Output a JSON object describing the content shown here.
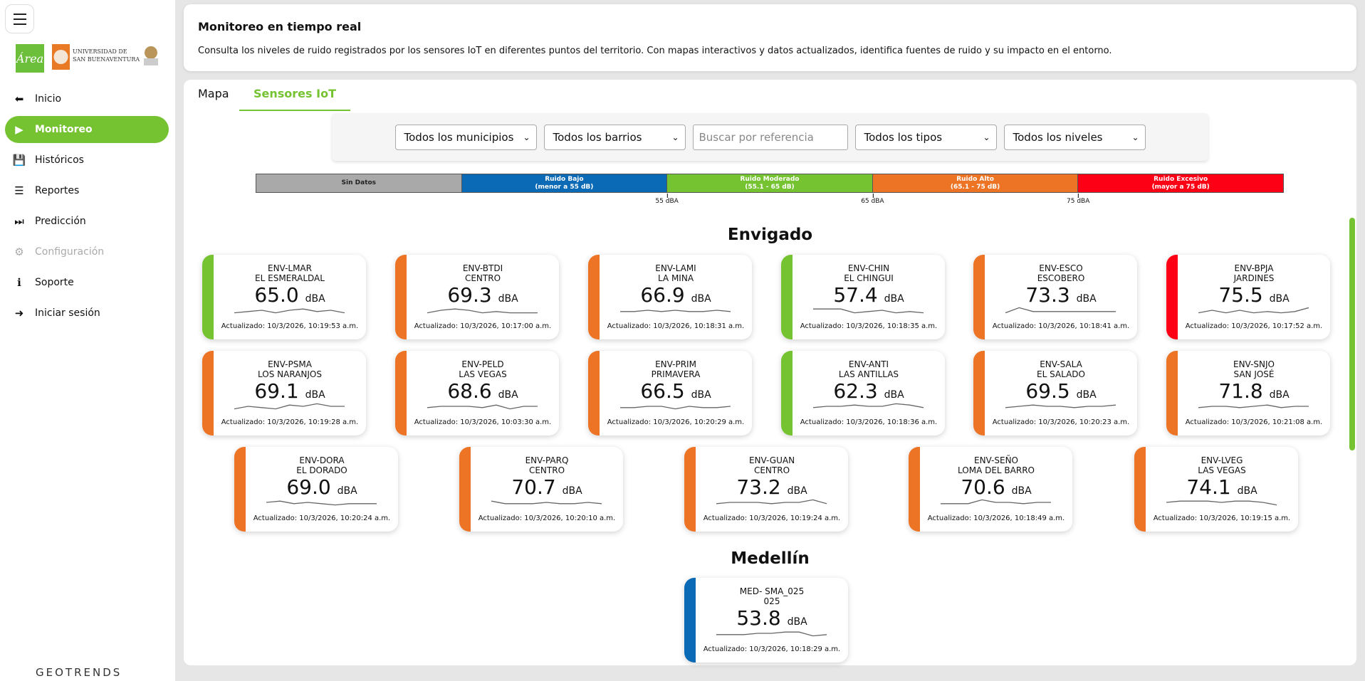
{
  "sidebar": {
    "brand": "GEOTRENDS",
    "logos": [
      "Área Metropolitana",
      "Universidad de San Buenaventura",
      "Escudo"
    ],
    "items": [
      {
        "label": "Inicio",
        "icon": "arrow-left-circle-icon"
      },
      {
        "label": "Monitoreo",
        "icon": "play-circle-icon",
        "active": true
      },
      {
        "label": "Históricos",
        "icon": "save-icon"
      },
      {
        "label": "Reportes",
        "icon": "list-chart-icon"
      },
      {
        "label": "Predicción",
        "icon": "skip-forward-icon"
      },
      {
        "label": "Configuración",
        "icon": "gear-icon",
        "disabled": true
      },
      {
        "label": "Soporte",
        "icon": "info-icon"
      },
      {
        "label": "Iniciar sesión",
        "icon": "login-icon"
      }
    ]
  },
  "header": {
    "title": "Monitoreo en tiempo real",
    "description": "Consulta los niveles de ruido registrados por los sensores IoT en diferentes puntos del territorio. Con mapas interactivos y datos actualizados, identifica fuentes de ruido y su impacto en el entorno."
  },
  "tabs": [
    {
      "label": "Mapa"
    },
    {
      "label": "Sensores IoT",
      "active": true
    }
  ],
  "filters": {
    "municipio": "Todos los municipios",
    "barrio": "Todos los barrios",
    "search_placeholder": "Buscar por referencia",
    "tipo": "Todos los tipos",
    "nivel": "Todos los niveles"
  },
  "legend": {
    "segments": [
      {
        "title": "Sin Datos",
        "range": "",
        "color": "#a9a9a9"
      },
      {
        "title": "Ruido Bajo",
        "range": "(menor a 55 dB)",
        "color": "#0a6ab5"
      },
      {
        "title": "Ruido Moderado",
        "range": "(55.1 - 65 dB)",
        "color": "#76c332"
      },
      {
        "title": "Ruido Alto",
        "range": "(65.1 - 75 dB)",
        "color": "#ec7424"
      },
      {
        "title": "Ruido Excesivo",
        "range": "(mayor a 75 dB)",
        "color": "#fe0016"
      }
    ],
    "ticks": [
      "55 dBA",
      "65 dBA",
      "75 dBA"
    ]
  },
  "unit": "dBA",
  "regions": [
    {
      "name": "Envigado",
      "sensors": [
        {
          "code": "ENV-LMAR",
          "place": "EL ESMERALDAL",
          "value": "65.0",
          "updated": "Actualizado: 10/3/2026, 10:19:53 a.m.",
          "color": "#76c332",
          "trend": [
            3,
            4,
            5,
            3,
            5,
            6,
            4,
            5,
            3
          ]
        },
        {
          "code": "ENV-BTDI",
          "place": "CENTRO",
          "value": "69.3",
          "updated": "Actualizado: 10/3/2026, 10:17:00 a.m.",
          "color": "#ec7424",
          "trend": [
            3,
            5,
            6,
            5,
            3,
            4,
            3,
            3,
            3
          ]
        },
        {
          "code": "ENV-LAMI",
          "place": "LA MINA",
          "value": "66.9",
          "updated": "Actualizado: 10/3/2026, 10:18:31 a.m.",
          "color": "#ec7424",
          "trend": [
            4,
            4,
            5,
            4,
            5,
            4,
            4,
            5,
            4
          ]
        },
        {
          "code": "ENV-CHIN",
          "place": "EL CHINGUI",
          "value": "57.4",
          "updated": "Actualizado: 10/3/2026, 10:18:35 a.m.",
          "color": "#76c332",
          "trend": [
            6,
            6,
            6,
            3,
            4,
            5,
            3,
            4,
            3
          ]
        },
        {
          "code": "ENV-ESCO",
          "place": "ESCOBERO",
          "value": "73.3",
          "updated": "Actualizado: 10/3/2026, 10:18:41 a.m.",
          "color": "#ec7424",
          "trend": [
            3,
            7,
            4,
            4,
            4,
            4,
            4,
            4,
            4
          ]
        },
        {
          "code": "ENV-BPJA",
          "place": "JARDINES",
          "value": "75.5",
          "updated": "Actualizado: 10/3/2026, 10:17:52 a.m.",
          "color": "#fe0016",
          "trend": [
            3,
            5,
            3,
            5,
            3,
            4,
            3,
            4,
            7
          ]
        },
        {
          "code": "ENV-PSMA",
          "place": "LOS NARANJOS",
          "value": "69.1",
          "updated": "Actualizado: 10/3/2026, 10:19:28 a.m.",
          "color": "#ec7424",
          "trend": [
            3,
            5,
            4,
            3,
            6,
            5,
            7,
            5,
            5
          ]
        },
        {
          "code": "ENV-PELD",
          "place": "LAS VEGAS",
          "value": "68.6",
          "updated": "Actualizado: 10/3/2026, 10:03:30 a.m.",
          "color": "#ec7424",
          "trend": [
            4,
            5,
            5,
            5,
            4,
            6,
            3,
            5,
            5
          ]
        },
        {
          "code": "ENV-PRIM",
          "place": "PRIMAVERA",
          "value": "66.5",
          "updated": "Actualizado: 10/3/2026, 10:20:29 a.m.",
          "color": "#ec7424",
          "trend": [
            4,
            4,
            5,
            5,
            3,
            5,
            4,
            4,
            5
          ]
        },
        {
          "code": "ENV-ANTI",
          "place": "LAS ANTILLAS",
          "value": "62.3",
          "updated": "Actualizado: 10/3/2026, 10:18:36 a.m.",
          "color": "#76c332",
          "trend": [
            4,
            5,
            5,
            6,
            5,
            5,
            7,
            6,
            4
          ]
        },
        {
          "code": "ENV-SALA",
          "place": "EL SALADO",
          "value": "69.5",
          "updated": "Actualizado: 10/3/2026, 10:20:23 a.m.",
          "color": "#ec7424",
          "trend": [
            4,
            5,
            6,
            5,
            5,
            4,
            5,
            5,
            6
          ]
        },
        {
          "code": "ENV-SNJO",
          "place": "SAN JOSÉ",
          "value": "71.8",
          "updated": "Actualizado: 10/3/2026, 10:21:08 a.m.",
          "color": "#ec7424",
          "trend": [
            4,
            5,
            5,
            4,
            5,
            6,
            4,
            5,
            5
          ]
        },
        {
          "code": "ENV-DORA",
          "place": "EL DORADO",
          "value": "69.0",
          "updated": "Actualizado: 10/3/2026, 10:20:24 a.m.",
          "color": "#ec7424",
          "trend": [
            5,
            6,
            4,
            5,
            4,
            3,
            4,
            4,
            4
          ]
        },
        {
          "code": "ENV-PARQ",
          "place": "CENTRO",
          "value": "70.7",
          "updated": "Actualizado: 10/3/2026, 10:20:10 a.m.",
          "color": "#ec7424",
          "trend": [
            6,
            4,
            4,
            4,
            5,
            4,
            4,
            5,
            4
          ]
        },
        {
          "code": "ENV-GUAN",
          "place": "CENTRO",
          "value": "73.2",
          "updated": "Actualizado: 10/3/2026, 10:19:24 a.m.",
          "color": "#ec7424",
          "trend": [
            4,
            5,
            5,
            5,
            4,
            5,
            5,
            7,
            4
          ]
        },
        {
          "code": "ENV-SEÑO",
          "place": "LOMA DEL BARRO",
          "value": "70.6",
          "updated": "Actualizado: 10/3/2026, 10:18:49 a.m.",
          "color": "#ec7424",
          "trend": [
            4,
            4,
            4,
            7,
            5,
            5,
            4,
            5,
            5
          ]
        },
        {
          "code": "ENV-LVEG",
          "place": "LAS VEGAS",
          "value": "74.1",
          "updated": "Actualizado: 10/3/2026, 10:19:15 a.m.",
          "color": "#ec7424",
          "trend": [
            5,
            6,
            6,
            6,
            5,
            6,
            6,
            5,
            3
          ]
        }
      ]
    },
    {
      "name": "Medellín",
      "sensors": [
        {
          "code": "MED- SMA_025",
          "place": "025",
          "value": "53.8",
          "updated": "Actualizado: 10/3/2026, 10:18:29 a.m.",
          "color": "#0a6ab5",
          "trend": [
            4,
            4,
            4,
            5,
            5,
            6,
            6,
            3,
            4
          ]
        }
      ]
    }
  ]
}
